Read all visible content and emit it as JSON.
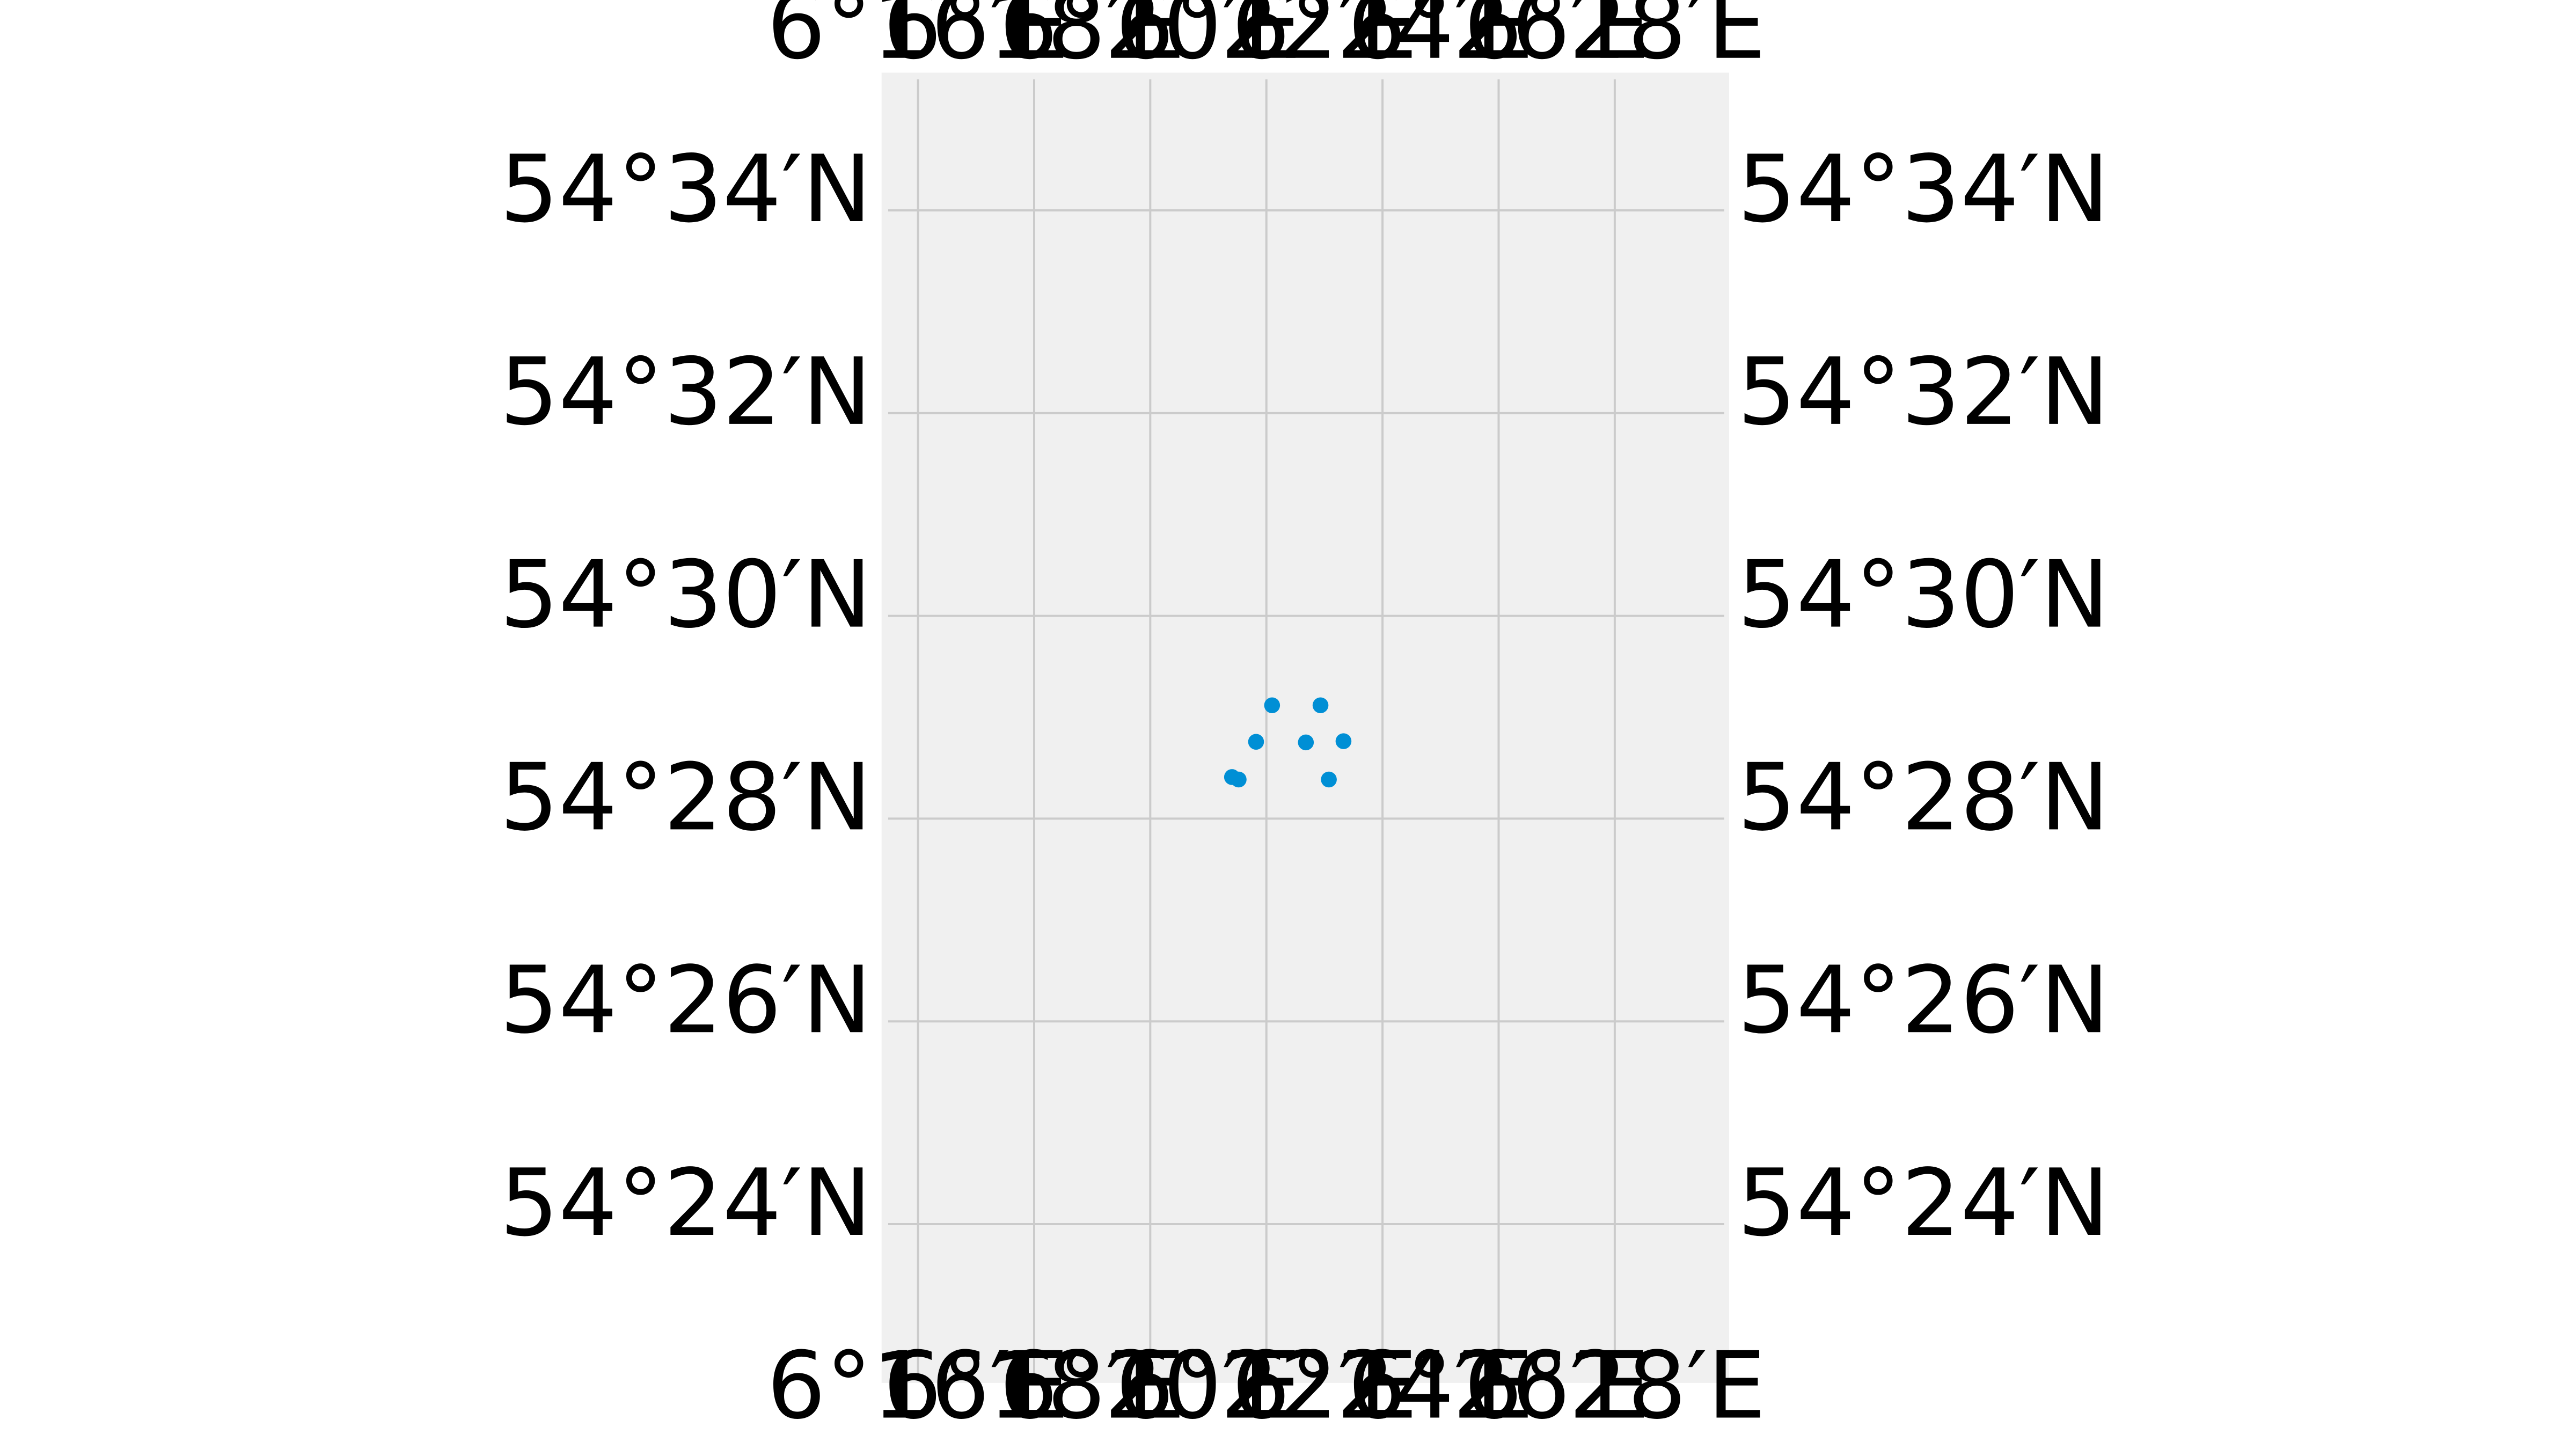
{
  "map": {
    "style": {
      "background": "#f0f0f0",
      "gridline": "#cbcbcb",
      "marker": "#008fd5",
      "label": "#000000"
    },
    "extent": {
      "lon_range": [
        6.2562,
        6.4995
      ],
      "lat_range": [
        54.3739,
        54.5893
      ]
    },
    "lon_ticks": [
      {
        "value": 6.266667,
        "label": "6°16′E"
      },
      {
        "value": 6.3,
        "label": "6°18′E"
      },
      {
        "value": 6.333333,
        "label": "6°20′E"
      },
      {
        "value": 6.366667,
        "label": "6°22′E"
      },
      {
        "value": 6.4,
        "label": "6°24′E"
      },
      {
        "value": 6.433333,
        "label": "6°26′E"
      },
      {
        "value": 6.466667,
        "label": "6°28′E"
      }
    ],
    "lat_ticks": [
      {
        "value": 54.566667,
        "label": "54°34′N"
      },
      {
        "value": 54.533333,
        "label": "54°32′N"
      },
      {
        "value": 54.5,
        "label": "54°30′N"
      },
      {
        "value": 54.466667,
        "label": "54°28′N"
      },
      {
        "value": 54.433333,
        "label": "54°26′N"
      },
      {
        "value": 54.4,
        "label": "54°24′N"
      }
    ],
    "points": [
      {
        "lon": 6.3683,
        "lat": 54.4853
      },
      {
        "lon": 6.3822,
        "lat": 54.4853
      },
      {
        "lon": 6.3637,
        "lat": 54.4793
      },
      {
        "lon": 6.378,
        "lat": 54.4792
      },
      {
        "lon": 6.3888,
        "lat": 54.4794
      },
      {
        "lon": 6.3568,
        "lat": 54.4735
      },
      {
        "lon": 6.3587,
        "lat": 54.4731
      },
      {
        "lon": 6.3846,
        "lat": 54.4731
      }
    ]
  }
}
